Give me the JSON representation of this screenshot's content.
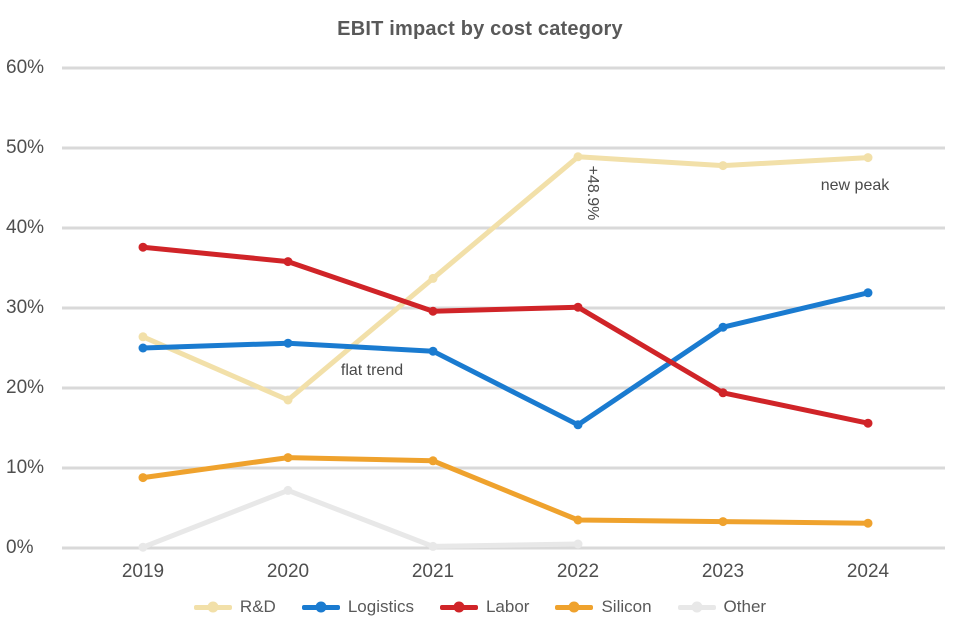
{
  "chart": {
    "title": "EBIT impact by cost category",
    "background": "#ffffff",
    "text_color": "#595959",
    "grid_color": "#d9d9d9"
  },
  "chart_data": {
    "type": "line",
    "title": "EBIT impact by cost category",
    "x": [
      "2019",
      "2020",
      "2021",
      "2022",
      "2023",
      "2024"
    ],
    "xlabel": "",
    "ylabel": "",
    "y_ticks": [
      "60%",
      "50%",
      "40%",
      "30%",
      "20%",
      "10%",
      "0%"
    ],
    "ylim": [
      0,
      60
    ],
    "grid": true,
    "legend_position": "bottom",
    "series": [
      {
        "name": "R&D",
        "color": "#f2e0a9",
        "values": [
          26.4,
          18.5,
          33.7,
          48.9,
          47.8,
          48.8
        ]
      },
      {
        "name": "Logistics",
        "color": "#1a7bd0",
        "values": [
          25.0,
          25.6,
          24.6,
          15.4,
          27.6,
          31.9
        ]
      },
      {
        "name": "Labor",
        "color": "#d02428",
        "values": [
          37.6,
          35.8,
          29.6,
          30.1,
          19.4,
          15.6
        ]
      },
      {
        "name": "Silicon",
        "color": "#efa22d",
        "values": [
          8.8,
          11.3,
          10.9,
          3.5,
          3.3,
          3.1
        ]
      },
      {
        "name": "Other",
        "color": "#e8e8e8",
        "values": [
          0.1,
          7.2,
          0.2,
          0.5,
          null,
          null
        ]
      }
    ],
    "annotations": [
      {
        "text": "flat trend",
        "x": 372,
        "y": 371,
        "vertical": false
      },
      {
        "text": "+48.9%",
        "x": 592,
        "y": 193,
        "vertical": true
      },
      {
        "text": "new peak",
        "x": 855,
        "y": 186,
        "vertical": false
      }
    ]
  }
}
